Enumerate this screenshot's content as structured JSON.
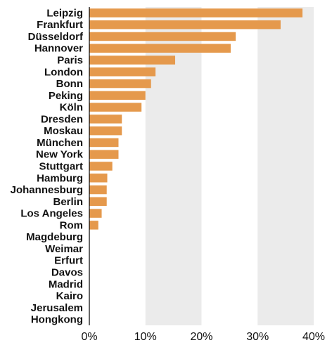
{
  "chart_data": {
    "type": "bar",
    "orientation": "horizontal",
    "categories": [
      "Leipzig",
      "Frankfurt",
      "Düsseldorf",
      "Hannover",
      "Paris",
      "London",
      "Bonn",
      "Peking",
      "Köln",
      "Dresden",
      "Moskau",
      "München",
      "New York",
      "Stuttgart",
      "Hamburg",
      "Johannesburg",
      "Berlin",
      "Los Angeles",
      "Rom",
      "Magdeburg",
      "Weimar",
      "Erfurt",
      "Davos",
      "Madrid",
      "Kairo",
      "Jerusalem",
      "Hongkong"
    ],
    "values": [
      38.0,
      34.1,
      26.1,
      25.2,
      15.3,
      11.8,
      11.0,
      10.0,
      9.3,
      5.8,
      5.8,
      5.2,
      5.2,
      4.1,
      3.2,
      3.1,
      3.1,
      2.2,
      1.6,
      0,
      0,
      0,
      0,
      0,
      0,
      0,
      0
    ],
    "xlim": [
      0,
      40
    ],
    "xticks": [
      0,
      10,
      20,
      30,
      40
    ],
    "xtick_labels": [
      "0%",
      "10%",
      "20%",
      "30%",
      "40%"
    ],
    "title": "",
    "xlabel": "",
    "ylabel": "",
    "bar_color": "#e5994c",
    "band_color": "#ebebeb",
    "grid_style": "alternating vertical bands"
  }
}
